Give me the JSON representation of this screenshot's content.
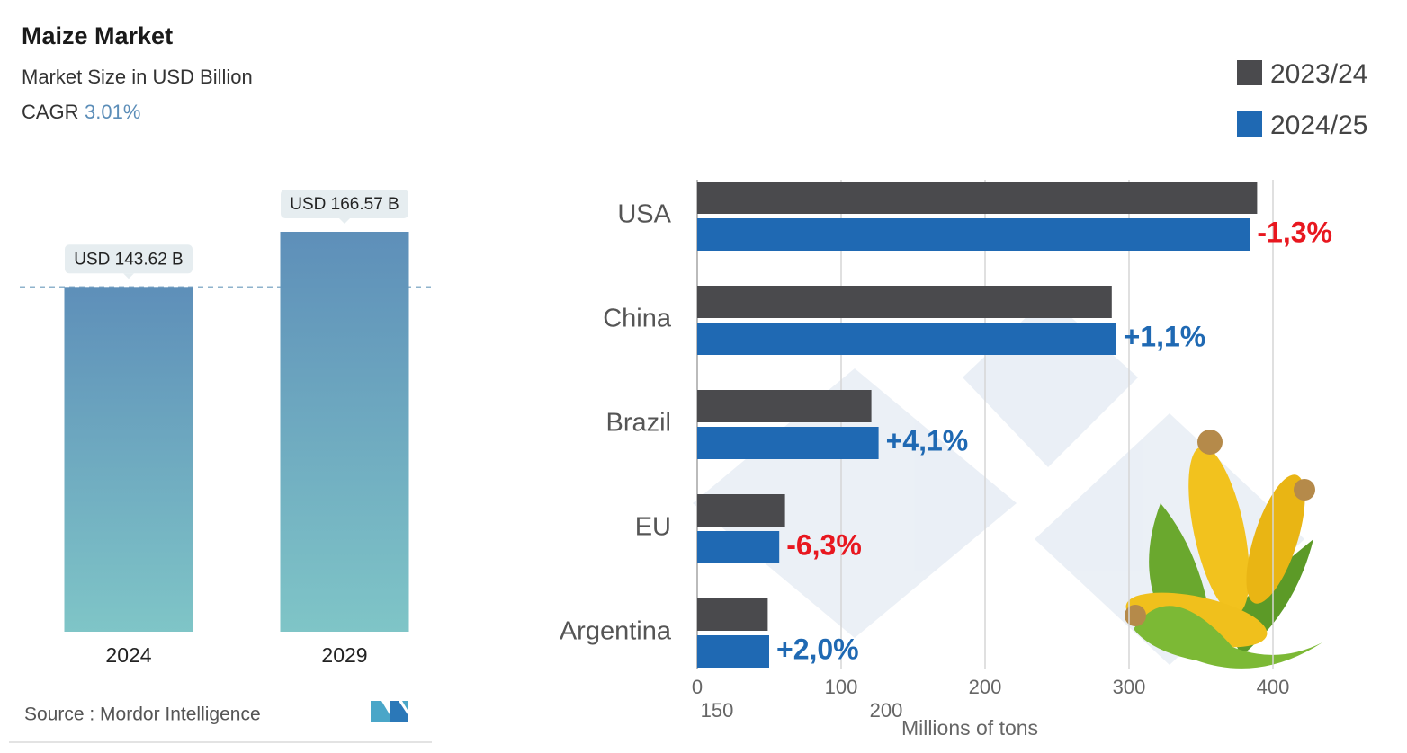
{
  "chart_data": [
    {
      "type": "bar",
      "title": "Maize Market",
      "subtitle": "Market Size in USD Billion",
      "cagr_label": "CAGR",
      "cagr_value": "3.01%",
      "categories": [
        "2024",
        "2029"
      ],
      "values": [
        143.62,
        166.57
      ],
      "value_labels": [
        "USD 143.62 B",
        "USD 166.57 B"
      ],
      "source": "Source : Mordor Intelligence"
    },
    {
      "type": "hbar",
      "categories": [
        "USA",
        "China",
        "Brazil",
        "EU",
        "Argentina"
      ],
      "series": [
        {
          "name": "2023/24",
          "color": "#4a4a4d",
          "values": [
            389,
            288,
            121,
            61,
            49
          ]
        },
        {
          "name": "2024/25",
          "color": "#1f69b3",
          "values": [
            384,
            291,
            126,
            57,
            50
          ]
        }
      ],
      "annotations": [
        {
          "text": "-1,3%",
          "color": "#e8171f"
        },
        {
          "text": "+1,1%",
          "color": "#1f69b3"
        },
        {
          "text": "+4,1%",
          "color": "#1f69b3"
        },
        {
          "text": "-6,3%",
          "color": "#e8171f"
        },
        {
          "text": "+2,0%",
          "color": "#1f69b3"
        }
      ],
      "xlim": [
        0,
        400
      ],
      "xticks": [
        0,
        100,
        200,
        300,
        400
      ],
      "overlay_texts": [
        "150",
        "200"
      ],
      "xlabel": "Millions of tons",
      "grid": true,
      "legend": "top-right"
    }
  ]
}
